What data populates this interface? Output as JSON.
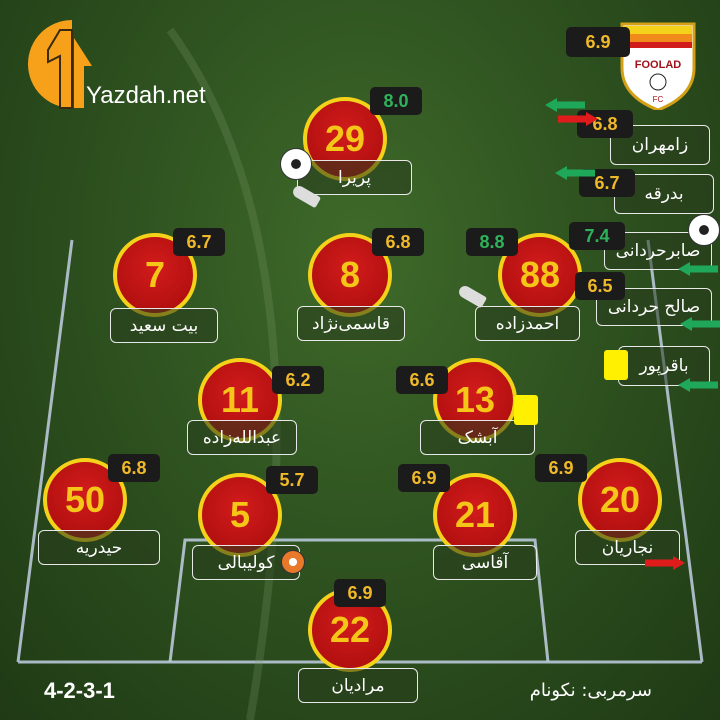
{
  "brand": {
    "logo_text": "Yazdah.net",
    "accent": "#f7a11a"
  },
  "team": {
    "badge_text": "FOOLAD FC",
    "rating": "6.9"
  },
  "players": [
    {
      "number": "29",
      "name": "پریرا",
      "rating": "8.0",
      "rating_color": "green",
      "events": [
        "goal",
        "assist-boot"
      ]
    },
    {
      "number": "7",
      "name": "بیت سعید",
      "rating": "6.7"
    },
    {
      "number": "8",
      "name": "قاسمی‌نژاد",
      "rating": "6.8"
    },
    {
      "number": "88",
      "name": "احمدزاده",
      "rating": "8.8",
      "rating_color": "green",
      "events": [
        "assist-boot"
      ]
    },
    {
      "number": "11",
      "name": "عبدالله‌زاده",
      "rating": "6.2"
    },
    {
      "number": "13",
      "name": "آبشک",
      "rating": "6.6",
      "events": [
        "yellow-card"
      ]
    },
    {
      "number": "50",
      "name": "حیدریه",
      "rating": "6.8"
    },
    {
      "number": "5",
      "name": "کولیبالی",
      "rating": "5.7",
      "events": [
        "own-goal"
      ]
    },
    {
      "number": "21",
      "name": "آقاسی",
      "rating": "6.9"
    },
    {
      "number": "20",
      "name": "نجاریان",
      "rating": "6.9",
      "events": [
        "sub-off"
      ]
    },
    {
      "number": "22",
      "name": "مرادیان",
      "rating": "6.9"
    }
  ],
  "substitutes": [
    {
      "name": "زامهران",
      "rating": "6.8",
      "events": [
        "sub-on",
        "sub-off"
      ]
    },
    {
      "name": "بدرقه",
      "rating": "6.7",
      "events": [
        "sub-on"
      ]
    },
    {
      "name": "صابرحردانی",
      "rating": "7.4",
      "rating_color": "green",
      "events": [
        "goal",
        "sub-on"
      ]
    },
    {
      "name": "صالح حردانی",
      "rating": "6.5",
      "events": [
        "sub-on"
      ]
    },
    {
      "name": "باقرپور",
      "events": [
        "yellow-card",
        "sub-on"
      ]
    }
  ],
  "footer": {
    "formation": "4-2-3-1",
    "coach": "سرمربی: نکونام"
  }
}
